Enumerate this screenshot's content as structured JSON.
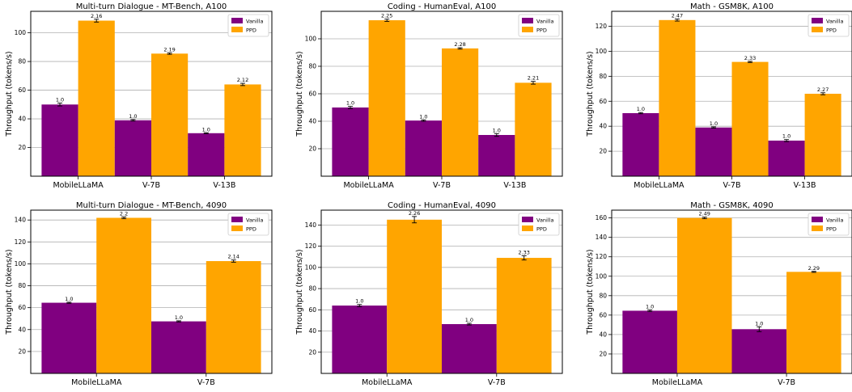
{
  "colors": {
    "vanilla": "#800080",
    "ppd": "#FFA500",
    "grid": "#b0b0b0",
    "axis": "#000000"
  },
  "legend": {
    "labels": [
      "Vanilla",
      "PPD"
    ],
    "placement": "top-right"
  },
  "chart_data": [
    {
      "type": "bar",
      "title": "Multi-turn Dialogue - MT-Bench, A100",
      "ylabel": "Throughput (tokens/s)",
      "categories": [
        "MobileLLaMA",
        "V-7B",
        "V-13B"
      ],
      "series": [
        {
          "name": "Vanilla",
          "values": [
            50,
            39,
            30
          ],
          "errors": [
            1,
            0.5,
            0.3
          ],
          "labels": [
            "1.0",
            "1.0",
            "1.0"
          ]
        },
        {
          "name": "PPD",
          "values": [
            108.5,
            85.5,
            64
          ],
          "errors": [
            1,
            0.5,
            0.8
          ],
          "labels": [
            "2.16",
            "2.19",
            "2.12"
          ]
        }
      ],
      "ylim": [
        0,
        115
      ],
      "yticks": [
        20,
        40,
        60,
        80,
        100
      ],
      "grid": true
    },
    {
      "type": "bar",
      "title": "Coding - HumanEval, A100",
      "ylabel": "Throughput (tokens/s)",
      "categories": [
        "MobileLLaMA",
        "V-7B",
        "V-13B"
      ],
      "series": [
        {
          "name": "Vanilla",
          "values": [
            50,
            40.5,
            30
          ],
          "errors": [
            0.8,
            0.5,
            1
          ],
          "labels": [
            "1.0",
            "1.0",
            "1.0"
          ]
        },
        {
          "name": "PPD",
          "values": [
            113.5,
            93,
            68
          ],
          "errors": [
            0.8,
            0.5,
            1
          ],
          "labels": [
            "2.25",
            "2.28",
            "2.21"
          ]
        }
      ],
      "ylim": [
        0,
        120
      ],
      "yticks": [
        20,
        40,
        60,
        80,
        100
      ],
      "grid": true
    },
    {
      "type": "bar",
      "title": "Math - GSM8K, A100",
      "ylabel": "Throughput (tokens/s)",
      "categories": [
        "MobileLLaMA",
        "V-7B",
        "V-13B"
      ],
      "series": [
        {
          "name": "Vanilla",
          "values": [
            50.5,
            39,
            28.5
          ],
          "errors": [
            0.5,
            0.5,
            0.8
          ],
          "labels": [
            "1.0",
            "1.0",
            "1.0"
          ]
        },
        {
          "name": "PPD",
          "values": [
            125,
            91.5,
            66
          ],
          "errors": [
            0.8,
            0.5,
            0.8
          ],
          "labels": [
            "2.47",
            "2.33",
            "2.27"
          ]
        }
      ],
      "ylim": [
        0,
        132
      ],
      "yticks": [
        20,
        40,
        60,
        80,
        100,
        120
      ],
      "grid": true
    },
    {
      "type": "bar",
      "title": "Multi-turn Dialogue - MT-Bench, 4090",
      "ylabel": "Throughput (tokens/s)",
      "categories": [
        "MobileLLaMA",
        "V-7B"
      ],
      "series": [
        {
          "name": "Vanilla",
          "values": [
            64.5,
            47.5
          ],
          "errors": [
            0.5,
            0.5
          ],
          "labels": [
            "1.0",
            "1.0"
          ]
        },
        {
          "name": "PPD",
          "values": [
            142,
            102.5
          ],
          "errors": [
            0.8,
            1
          ],
          "labels": [
            "2.2",
            "2.14"
          ]
        }
      ],
      "ylim": [
        0,
        149
      ],
      "yticks": [
        20,
        40,
        60,
        80,
        100,
        120,
        140
      ],
      "grid": true
    },
    {
      "type": "bar",
      "title": "Coding - HumanEval, 4090",
      "ylabel": "Throughput (tokens/s)",
      "categories": [
        "MobileLLaMA",
        "V-7B"
      ],
      "series": [
        {
          "name": "Vanilla",
          "values": [
            64,
            46.5
          ],
          "errors": [
            1,
            0.8
          ],
          "labels": [
            "1.0",
            "1.0"
          ]
        },
        {
          "name": "PPD",
          "values": [
            145,
            109
          ],
          "errors": [
            3,
            2
          ],
          "labels": [
            "2.26",
            "2.33"
          ]
        }
      ],
      "ylim": [
        0,
        154
      ],
      "yticks": [
        20,
        40,
        60,
        80,
        100,
        120,
        140
      ],
      "grid": true
    },
    {
      "type": "bar",
      "title": "Math - GSM8K, 4090",
      "ylabel": "Throughput (tokens/s)",
      "categories": [
        "MobileLLaMA",
        "V-7B"
      ],
      "series": [
        {
          "name": "Vanilla",
          "values": [
            64.5,
            45.5
          ],
          "errors": [
            0.8,
            2.5
          ],
          "labels": [
            "1.0",
            "1.0"
          ]
        },
        {
          "name": "PPD",
          "values": [
            160,
            104.5
          ],
          "errors": [
            0.8,
            0.5
          ],
          "labels": [
            "2.49",
            "2.29"
          ]
        }
      ],
      "ylim": [
        0,
        168
      ],
      "yticks": [
        20,
        40,
        60,
        80,
        100,
        120,
        140,
        160
      ],
      "grid": true
    }
  ]
}
